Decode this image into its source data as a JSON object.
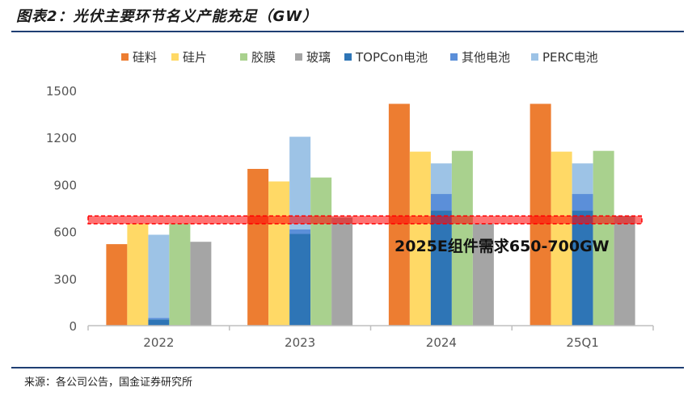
{
  "title": "图表2：光伏主要环节名义产能充足（GW）",
  "source": "来源：各公司公告，国金证券研究所",
  "chart_data": {
    "type": "bar",
    "categories": [
      "2022",
      "2023",
      "2024",
      "25Q1"
    ],
    "ylim": [
      0,
      1500
    ],
    "yticks": [
      "0",
      "300",
      "600",
      "900",
      "1200",
      "1500"
    ],
    "grid": false,
    "legend_position": "top",
    "series": [
      {
        "name": "硅料",
        "color": "#ED7D31",
        "values": [
          520,
          1000,
          1415,
          1415
        ]
      },
      {
        "name": "硅片",
        "color": "#FFD966",
        "values": [
          650,
          920,
          1110,
          1110
        ]
      },
      {
        "name": "胶膜",
        "color": "#A9D18E",
        "values": [
          650,
          945,
          1115,
          1115
        ]
      },
      {
        "name": "玻璃",
        "color": "#A5A5A5",
        "values": [
          535,
          690,
          650,
          700
        ]
      },
      {
        "name": "TOPCon电池",
        "color": "#2E75B6",
        "values": [
          40,
          585,
          735,
          735
        ]
      },
      {
        "name": "其他电池",
        "color": "#5B8FD9",
        "values": [
          10,
          30,
          105,
          105
        ]
      },
      {
        "name": "PERC电池",
        "color": "#9DC3E6",
        "values": [
          530,
          590,
          195,
          195
        ]
      }
    ],
    "annotation": {
      "text": "2025E组件需求650-700GW",
      "band": [
        650,
        700
      ],
      "band_color": "#FF0000"
    }
  }
}
